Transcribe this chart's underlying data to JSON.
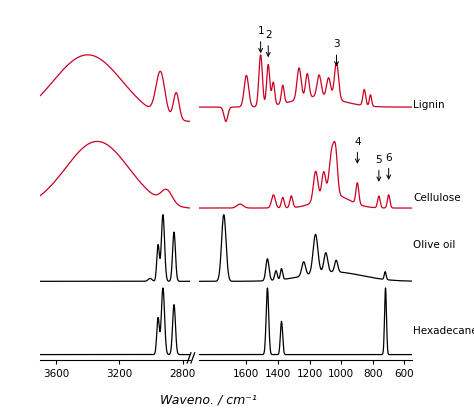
{
  "xlabel": "Waveno. / cm⁻¹",
  "background_color": "#ffffff",
  "colors": {
    "lignin": "#cc0022",
    "cellulose": "#cc0022",
    "olive_oil": "#000000",
    "hexadecane": "#000000"
  },
  "labels": {
    "lignin": "Lignin",
    "cellulose": "Cellulose",
    "olive_oil": "Olive oil",
    "hexadecane": "Hexadecane"
  },
  "offsets": {
    "hexadecane": 0.0,
    "olive_oil": 0.55,
    "cellulose": 1.1,
    "lignin": 1.75
  },
  "scale": 0.5,
  "xticks_left": [
    3600,
    3200,
    2800
  ],
  "xticks_right": [
    1600,
    1400,
    1200,
    1000,
    800,
    600
  ],
  "xlim_left": [
    3700,
    2750
  ],
  "xlim_right": [
    1900,
    550
  ]
}
